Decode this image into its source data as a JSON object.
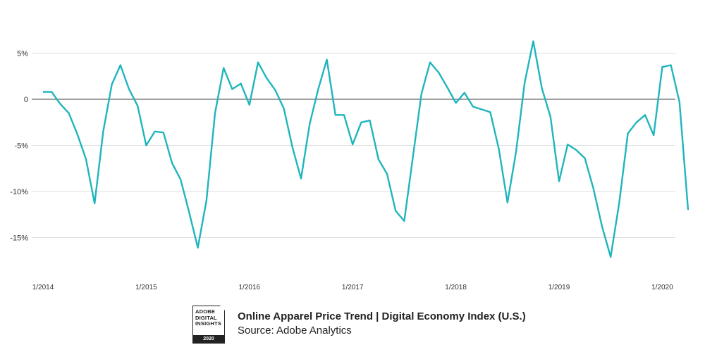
{
  "chart_data": {
    "type": "line",
    "color": "#1fb5bd",
    "y_unit": "%",
    "ylim": [
      -18,
      7
    ],
    "y_ticks": [
      5,
      0,
      -5,
      -10,
      -15
    ],
    "y_tick_labels": [
      "5%",
      "0",
      "-5%",
      "-10%",
      "-15%"
    ],
    "x_tick_labels": [
      "1/2014",
      "1/2015",
      "1/2016",
      "1/2017",
      "1/2018",
      "1/2019",
      "1/2020"
    ],
    "grid": true,
    "series": [
      {
        "x": [
          "2014-01",
          "2014-02",
          "2014-03",
          "2014-04",
          "2014-05",
          "2014-06",
          "2014-07",
          "2014-08",
          "2014-09",
          "2014-10",
          "2014-11",
          "2014-12",
          "2015-01",
          "2015-02",
          "2015-03",
          "2015-04",
          "2015-05",
          "2015-06",
          "2015-07",
          "2015-08",
          "2015-09",
          "2015-10",
          "2015-11",
          "2015-12",
          "2016-01",
          "2016-02",
          "2016-03",
          "2016-04",
          "2016-05",
          "2016-06",
          "2016-07",
          "2016-08",
          "2016-09",
          "2016-10",
          "2016-11",
          "2016-12",
          "2017-01",
          "2017-02",
          "2017-03",
          "2017-04",
          "2017-05",
          "2017-06",
          "2017-07",
          "2017-08",
          "2017-09",
          "2017-10",
          "2017-11",
          "2017-12",
          "2018-01",
          "2018-02",
          "2018-03",
          "2018-04",
          "2018-05",
          "2018-06",
          "2018-07",
          "2018-08",
          "2018-09",
          "2018-10",
          "2018-11",
          "2018-12",
          "2019-01",
          "2019-02",
          "2019-03",
          "2019-04",
          "2019-05",
          "2019-06",
          "2019-07",
          "2019-08",
          "2019-09",
          "2019-10",
          "2019-11",
          "2019-12",
          "2020-01",
          "2020-02",
          "2020-03",
          "2020-04"
        ],
        "values": [
          0.8,
          0.8,
          -0.5,
          -1.5,
          -3.8,
          -6.5,
          -11.3,
          -3.5,
          1.6,
          3.7,
          1.1,
          -0.7,
          -5.0,
          -3.5,
          -3.6,
          -6.9,
          -8.7,
          -12.3,
          -16.1,
          -11.0,
          -1.5,
          3.4,
          1.1,
          1.7,
          -0.6,
          4.0,
          2.3,
          1.0,
          -1.0,
          -5.2,
          -8.6,
          -2.7,
          1.1,
          4.3,
          -1.7,
          -1.7,
          -4.9,
          -2.5,
          -2.3,
          -6.5,
          -8.1,
          -12.1,
          -13.2,
          -6.3,
          0.6,
          4.0,
          2.9,
          1.3,
          -0.4,
          0.7,
          -0.8,
          -1.1,
          -1.4,
          -5.4,
          -11.2,
          -5.7,
          1.8,
          6.3,
          1.2,
          -1.9,
          -8.9,
          -4.9,
          -5.5,
          -6.4,
          -9.7,
          -13.8,
          -17.1,
          -11.2,
          -3.7,
          -2.5,
          -1.7,
          -3.9,
          3.5,
          3.7,
          -0.3,
          -12.0
        ]
      }
    ]
  },
  "footer": {
    "badge_lines": [
      "ADOBE",
      "DIGITAL",
      "INSIGHTS"
    ],
    "badge_year": "2020",
    "title": "Online Apparel Price Trend | Digital Economy Index (U.S.)",
    "source": "Source: Adobe Analytics"
  }
}
